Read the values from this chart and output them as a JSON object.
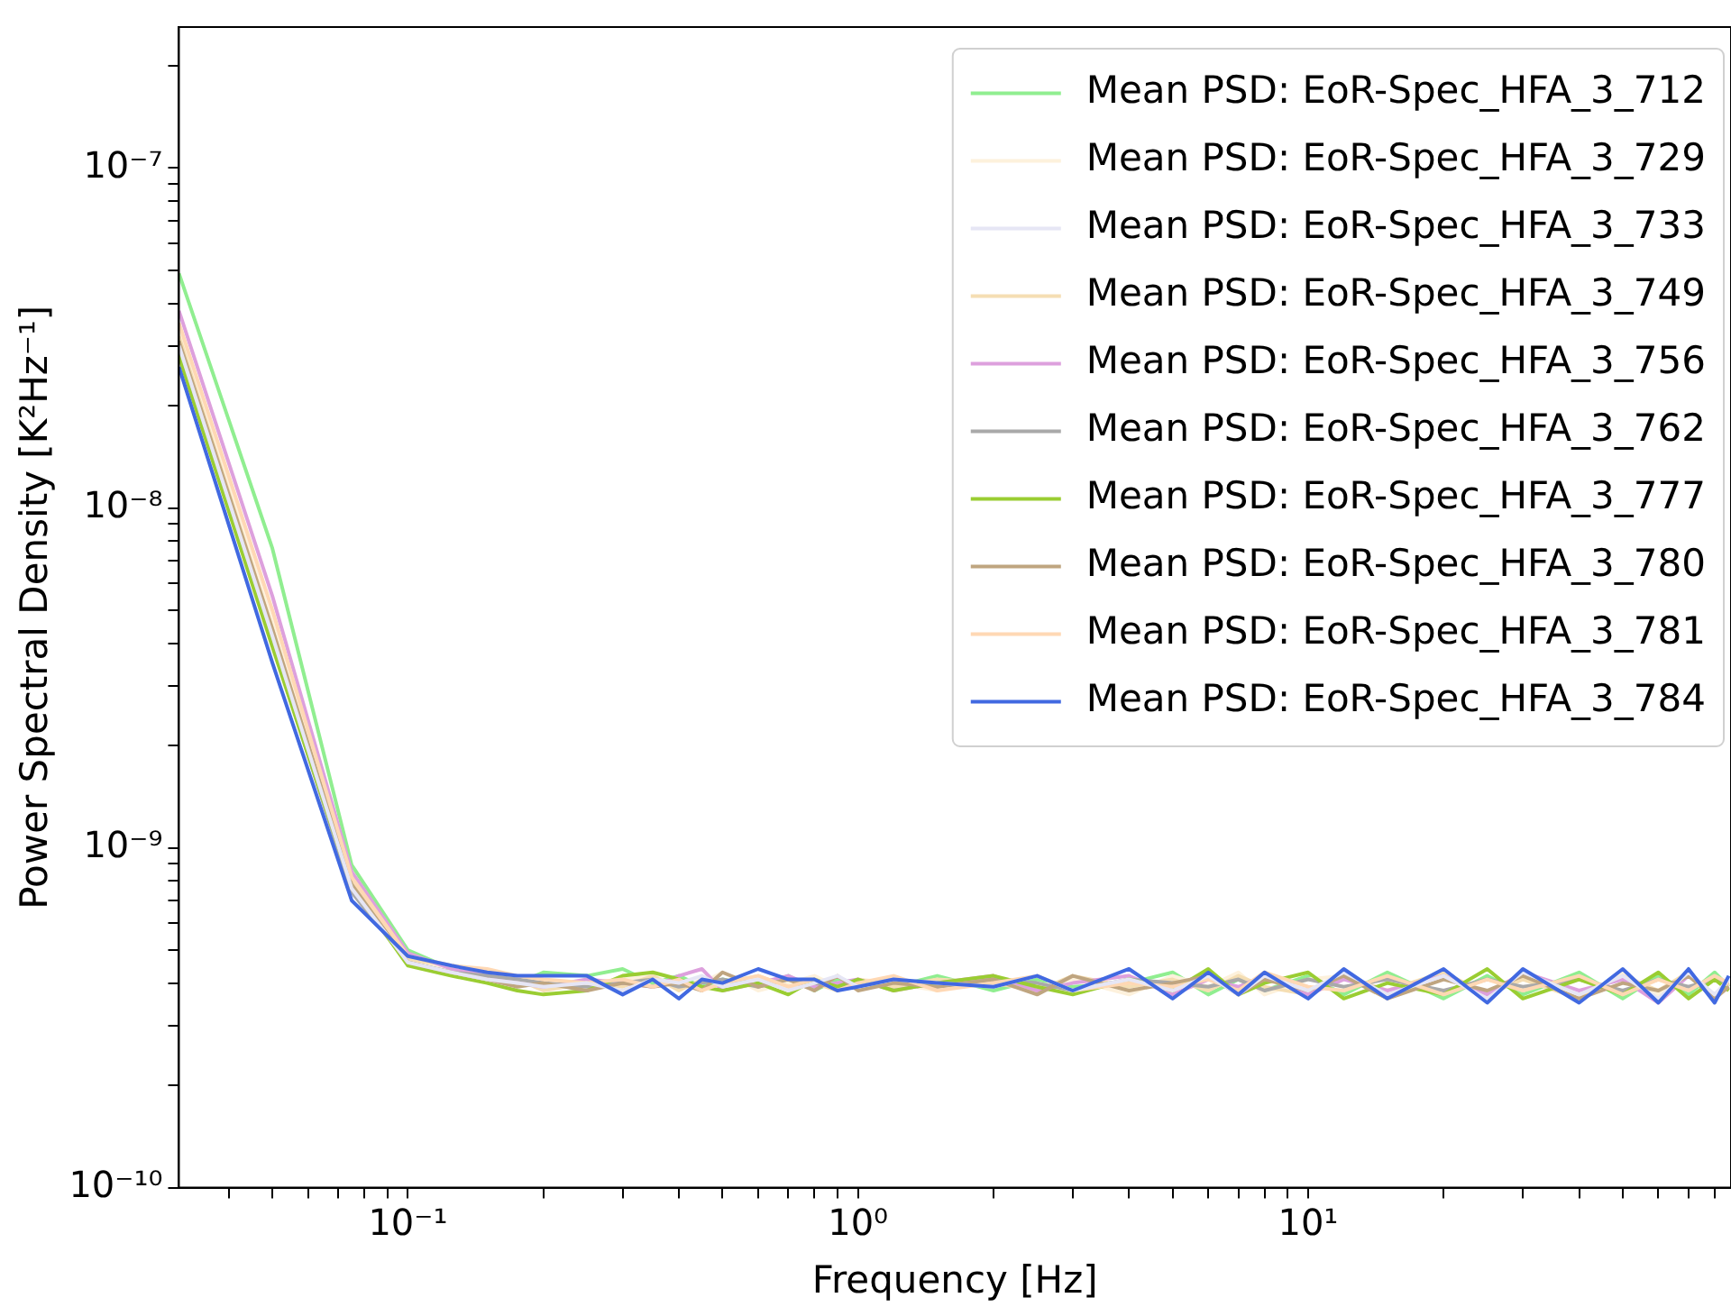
{
  "chart_data": {
    "type": "line",
    "xlabel": "Frequency [Hz]",
    "ylabel": "Power Spectral Density [K²Hz⁻¹]",
    "log": "xy",
    "marker": "none",
    "legend": "top right",
    "xlim": [
      0.031,
      87
    ],
    "ylim": [
      1e-10,
      2.6e-07
    ],
    "xticks": [
      {
        "value": 0.04,
        "label": null
      },
      {
        "value": 0.05,
        "label": null
      },
      {
        "value": 0.06,
        "label": null
      },
      {
        "value": 0.07,
        "label": null
      },
      {
        "value": 0.08,
        "label": null
      },
      {
        "value": 0.09,
        "label": null
      },
      {
        "value": 0.1,
        "label": "10⁻¹"
      },
      {
        "value": 0.2,
        "label": null
      },
      {
        "value": 0.3,
        "label": null
      },
      {
        "value": 0.4,
        "label": null
      },
      {
        "value": 0.5,
        "label": null
      },
      {
        "value": 0.6,
        "label": null
      },
      {
        "value": 0.7,
        "label": null
      },
      {
        "value": 0.8,
        "label": null
      },
      {
        "value": 0.9,
        "label": null
      },
      {
        "value": 1,
        "label": "10⁰"
      },
      {
        "value": 2,
        "label": null
      },
      {
        "value": 3,
        "label": null
      },
      {
        "value": 4,
        "label": null
      },
      {
        "value": 5,
        "label": null
      },
      {
        "value": 6,
        "label": null
      },
      {
        "value": 7,
        "label": null
      },
      {
        "value": 8,
        "label": null
      },
      {
        "value": 9,
        "label": null
      },
      {
        "value": 10,
        "label": "10¹"
      },
      {
        "value": 20,
        "label": null
      },
      {
        "value": 30,
        "label": null
      },
      {
        "value": 40,
        "label": null
      },
      {
        "value": 50,
        "label": null
      },
      {
        "value": 60,
        "label": null
      },
      {
        "value": 70,
        "label": null
      },
      {
        "value": 80,
        "label": null
      }
    ],
    "yticks": [
      {
        "value": 1e-10,
        "label": "10⁻¹⁰"
      },
      {
        "value": 2e-10,
        "label": null
      },
      {
        "value": 3e-10,
        "label": null
      },
      {
        "value": 4e-10,
        "label": null
      },
      {
        "value": 5e-10,
        "label": null
      },
      {
        "value": 6e-10,
        "label": null
      },
      {
        "value": 7e-10,
        "label": null
      },
      {
        "value": 8e-10,
        "label": null
      },
      {
        "value": 9e-10,
        "label": null
      },
      {
        "value": 1e-09,
        "label": "10⁻⁹"
      },
      {
        "value": 2e-09,
        "label": null
      },
      {
        "value": 3e-09,
        "label": null
      },
      {
        "value": 4e-09,
        "label": null
      },
      {
        "value": 5e-09,
        "label": null
      },
      {
        "value": 6e-09,
        "label": null
      },
      {
        "value": 7e-09,
        "label": null
      },
      {
        "value": 8e-09,
        "label": null
      },
      {
        "value": 9e-09,
        "label": null
      },
      {
        "value": 1e-08,
        "label": "10⁻⁸"
      },
      {
        "value": 2e-08,
        "label": null
      },
      {
        "value": 3e-08,
        "label": null
      },
      {
        "value": 4e-08,
        "label": null
      },
      {
        "value": 5e-08,
        "label": null
      },
      {
        "value": 6e-08,
        "label": null
      },
      {
        "value": 7e-08,
        "label": null
      },
      {
        "value": 8e-08,
        "label": null
      },
      {
        "value": 9e-08,
        "label": null
      },
      {
        "value": 1e-07,
        "label": "10⁻⁷"
      },
      {
        "value": 2e-07,
        "label": null
      }
    ],
    "x": [
      0.031,
      0.05,
      0.075,
      0.1,
      0.125,
      0.15,
      0.175,
      0.2,
      0.25,
      0.3,
      0.35,
      0.4,
      0.45,
      0.5,
      0.6,
      0.7,
      0.8,
      0.9,
      1,
      1.2,
      1.5,
      2,
      2.5,
      3,
      4,
      5,
      6,
      7,
      8,
      10,
      12,
      15,
      20,
      25,
      30,
      40,
      50,
      60,
      70,
      80,
      86
    ],
    "series": [
      {
        "name": "Mean PSD: EoR-Spec_HFA_3_712",
        "color": "#90ee90",
        "values": [
          4.9e-08,
          7.6e-09,
          8.9e-10,
          5e-10,
          4.4e-10,
          4.2e-10,
          4e-10,
          4.3e-10,
          4.2e-10,
          4.4e-10,
          4e-10,
          4.2e-10,
          3.9e-10,
          4.1e-10,
          3.9e-10,
          4.2e-10,
          3.8e-10,
          4.1e-10,
          4e-10,
          3.9e-10,
          4.2e-10,
          3.8e-10,
          4.1e-10,
          3.9e-10,
          4e-10,
          4.3e-10,
          3.7e-10,
          4.1e-10,
          3.8e-10,
          4.2e-10,
          3.7e-10,
          4.3e-10,
          3.6e-10,
          4.2e-10,
          3.7e-10,
          4.3e-10,
          3.6e-10,
          4.2e-10,
          3.7e-10,
          4.3e-10,
          3.9e-10
        ]
      },
      {
        "name": "Mean PSD: EoR-Spec_HFA_3_729",
        "color": "#fdf1dc",
        "values": [
          3.3e-08,
          4.6e-09,
          8e-10,
          4.7e-10,
          4.4e-10,
          4.3e-10,
          4.1e-10,
          4e-10,
          3.9e-10,
          4.1e-10,
          4.2e-10,
          3.9e-10,
          4e-10,
          4.3e-10,
          3.8e-10,
          4e-10,
          4.2e-10,
          3.9e-10,
          4.1e-10,
          4e-10,
          3.8e-10,
          4.2e-10,
          3.9e-10,
          4.1e-10,
          3.7e-10,
          4.2e-10,
          3.9e-10,
          4.3e-10,
          3.7e-10,
          4.1e-10,
          4.2e-10,
          3.6e-10,
          4.3e-10,
          3.7e-10,
          4.2e-10,
          3.6e-10,
          4.3e-10,
          3.7e-10,
          4.2e-10,
          3.6e-10,
          4e-10
        ]
      },
      {
        "name": "Mean PSD: EoR-Spec_HFA_3_733",
        "color": "#e6e6f5",
        "values": [
          3e-08,
          4.2e-09,
          7.6e-10,
          4.6e-10,
          4.3e-10,
          4.1e-10,
          4e-10,
          3.9e-10,
          4e-10,
          3.8e-10,
          4.1e-10,
          4e-10,
          4.2e-10,
          3.9e-10,
          4.1e-10,
          3.8e-10,
          4e-10,
          4.2e-10,
          3.9e-10,
          4.1e-10,
          4e-10,
          3.9e-10,
          4.2e-10,
          3.8e-10,
          4.1e-10,
          3.8e-10,
          4.2e-10,
          3.7e-10,
          4.2e-10,
          3.8e-10,
          4.3e-10,
          3.7e-10,
          4.2e-10,
          3.6e-10,
          4.3e-10,
          3.7e-10,
          4.2e-10,
          3.6e-10,
          4.3e-10,
          3.7e-10,
          4.1e-10
        ]
      },
      {
        "name": "Mean PSD: EoR-Spec_HFA_3_749",
        "color": "#f5deb3",
        "values": [
          3.2e-08,
          4.4e-09,
          7.9e-10,
          4.7e-10,
          4.5e-10,
          4.3e-10,
          4.1e-10,
          3.8e-10,
          4e-10,
          3.9e-10,
          4.2e-10,
          3.8e-10,
          4.1e-10,
          4e-10,
          4.2e-10,
          3.9e-10,
          4e-10,
          3.8e-10,
          4.1e-10,
          3.9e-10,
          4.1e-10,
          4e-10,
          3.8e-10,
          4.2e-10,
          3.9e-10,
          4.1e-10,
          3.8e-10,
          4.2e-10,
          3.9e-10,
          3.7e-10,
          4.2e-10,
          3.8e-10,
          4.3e-10,
          3.7e-10,
          4.1e-10,
          3.6e-10,
          4.2e-10,
          3.8e-10,
          4.3e-10,
          3.6e-10,
          4e-10
        ]
      },
      {
        "name": "Mean PSD: EoR-Spec_HFA_3_756",
        "color": "#dda0dd",
        "values": [
          3.8e-08,
          5.5e-09,
          8.5e-10,
          4.9e-10,
          4.4e-10,
          4.2e-10,
          4e-10,
          3.9e-10,
          4.1e-10,
          4e-10,
          3.9e-10,
          4.2e-10,
          4.4e-10,
          3.8e-10,
          4e-10,
          4.2e-10,
          3.9e-10,
          4e-10,
          4.1e-10,
          3.8e-10,
          4e-10,
          4.2e-10,
          3.8e-10,
          4e-10,
          4.2e-10,
          3.7e-10,
          4.1e-10,
          3.9e-10,
          4.2e-10,
          3.7e-10,
          4.1e-10,
          3.8e-10,
          4.2e-10,
          3.7e-10,
          4.3e-10,
          3.8e-10,
          4.1e-10,
          3.5e-10,
          4.2e-10,
          3.7e-10,
          3.9e-10
        ]
      },
      {
        "name": "Mean PSD: EoR-Spec_HFA_3_762",
        "color": "#a9a9a9",
        "values": [
          2.9e-08,
          4e-09,
          7.4e-10,
          4.6e-10,
          4.3e-10,
          4.2e-10,
          4.1e-10,
          4e-10,
          3.9e-10,
          4e-10,
          4.1e-10,
          3.9e-10,
          4e-10,
          4.1e-10,
          3.9e-10,
          4.1e-10,
          4e-10,
          3.9e-10,
          4e-10,
          4.1e-10,
          3.9e-10,
          4.1e-10,
          4e-10,
          3.8e-10,
          4.1e-10,
          4e-10,
          3.9e-10,
          4.1e-10,
          3.8e-10,
          4.1e-10,
          3.9e-10,
          4.1e-10,
          3.8e-10,
          4.1e-10,
          3.9e-10,
          4.1e-10,
          3.8e-10,
          4.1e-10,
          3.9e-10,
          4.1e-10,
          4e-10
        ]
      },
      {
        "name": "Mean PSD: EoR-Spec_HFA_3_777",
        "color": "#9acd32",
        "values": [
          2.8e-08,
          3.9e-09,
          7.7e-10,
          4.5e-10,
          4.2e-10,
          4e-10,
          3.8e-10,
          3.7e-10,
          3.8e-10,
          4.2e-10,
          4.3e-10,
          4.1e-10,
          3.9e-10,
          3.8e-10,
          4e-10,
          3.7e-10,
          4.1e-10,
          3.9e-10,
          4.1e-10,
          3.8e-10,
          4e-10,
          4.2e-10,
          3.9e-10,
          3.7e-10,
          4.1e-10,
          3.8e-10,
          4.4e-10,
          3.7e-10,
          4e-10,
          4.3e-10,
          3.6e-10,
          4e-10,
          3.7e-10,
          4.4e-10,
          3.6e-10,
          4.1e-10,
          3.7e-10,
          4.3e-10,
          3.6e-10,
          4.1e-10,
          3.8e-10
        ]
      },
      {
        "name": "Mean PSD: EoR-Spec_HFA_3_780",
        "color": "#bfa580",
        "values": [
          3.1e-08,
          4.4e-09,
          7.8e-10,
          4.6e-10,
          4.3e-10,
          4.1e-10,
          3.9e-10,
          4e-10,
          3.8e-10,
          4e-10,
          3.9e-10,
          4e-10,
          3.8e-10,
          4.3e-10,
          3.9e-10,
          4.1e-10,
          3.8e-10,
          4.2e-10,
          3.8e-10,
          4e-10,
          3.9e-10,
          4.1e-10,
          3.7e-10,
          4.2e-10,
          3.8e-10,
          4e-10,
          4.2e-10,
          3.7e-10,
          4.1e-10,
          3.8e-10,
          4.2e-10,
          3.6e-10,
          4.1e-10,
          3.8e-10,
          4.2e-10,
          3.6e-10,
          4e-10,
          3.8e-10,
          4.2e-10,
          3.6e-10,
          3.9e-10
        ]
      },
      {
        "name": "Mean PSD: EoR-Spec_HFA_3_781",
        "color": "#ffd8b4",
        "values": [
          3.5e-08,
          5e-09,
          8.2e-10,
          4.8e-10,
          4.5e-10,
          4.4e-10,
          4.2e-10,
          4.1e-10,
          4e-10,
          4.1e-10,
          3.9e-10,
          4.1e-10,
          3.8e-10,
          4e-10,
          4.2e-10,
          3.9e-10,
          4.1e-10,
          3.8e-10,
          4e-10,
          4.2e-10,
          3.8e-10,
          4e-10,
          4.2e-10,
          3.8e-10,
          4e-10,
          3.9e-10,
          4.1e-10,
          3.8e-10,
          4.3e-10,
          3.9e-10,
          3.8e-10,
          4.2e-10,
          3.7e-10,
          4.1e-10,
          3.8e-10,
          4.2e-10,
          3.7e-10,
          4.1e-10,
          3.8e-10,
          4.2e-10,
          4e-10
        ]
      },
      {
        "name": "Mean PSD: EoR-Spec_HFA_3_784",
        "color": "#4169e1",
        "values": [
          2.6e-08,
          3.5e-09,
          7e-10,
          4.8e-10,
          4.5e-10,
          4.3e-10,
          4.2e-10,
          4.2e-10,
          4.2e-10,
          3.7e-10,
          4.1e-10,
          3.6e-10,
          4.1e-10,
          4e-10,
          4.4e-10,
          4.1e-10,
          4.1e-10,
          3.8e-10,
          3.9e-10,
          4.1e-10,
          4e-10,
          3.9e-10,
          4.2e-10,
          3.8e-10,
          4.4e-10,
          3.6e-10,
          4.3e-10,
          3.7e-10,
          4.3e-10,
          3.6e-10,
          4.4e-10,
          3.6e-10,
          4.4e-10,
          3.5e-10,
          4.4e-10,
          3.5e-10,
          4.4e-10,
          3.5e-10,
          4.4e-10,
          3.5e-10,
          4.2e-10
        ]
      }
    ]
  }
}
